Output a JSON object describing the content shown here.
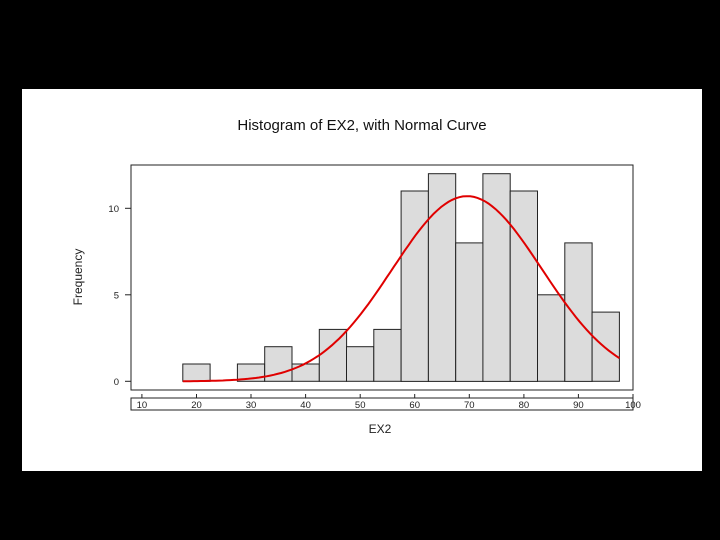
{
  "chart_data": {
    "type": "bar",
    "title": "Histogram of EX2, with Normal Curve",
    "xlabel": "EX2",
    "ylabel": "Frequency",
    "xlim": [
      8,
      100
    ],
    "ylim": [
      -0.5,
      12.5
    ],
    "xticks": [
      10,
      20,
      30,
      40,
      50,
      60,
      70,
      80,
      90,
      100
    ],
    "yticks": [
      0,
      5,
      10
    ],
    "bin_width": 5,
    "bins": [
      {
        "center": 20,
        "count": 1
      },
      {
        "center": 25,
        "count": 0
      },
      {
        "center": 30,
        "count": 1
      },
      {
        "center": 35,
        "count": 2
      },
      {
        "center": 40,
        "count": 1
      },
      {
        "center": 45,
        "count": 3
      },
      {
        "center": 50,
        "count": 2
      },
      {
        "center": 55,
        "count": 3
      },
      {
        "center": 60,
        "count": 11
      },
      {
        "center": 65,
        "count": 12
      },
      {
        "center": 70,
        "count": 8
      },
      {
        "center": 75,
        "count": 12
      },
      {
        "center": 80,
        "count": 11
      },
      {
        "center": 85,
        "count": 5
      },
      {
        "center": 90,
        "count": 8
      },
      {
        "center": 95,
        "count": 4
      }
    ],
    "normal_curve": {
      "mean": 69.6,
      "sd": 13.7,
      "peak": 10.7,
      "x_range": [
        17.5,
        97.5
      ]
    },
    "colors": {
      "bar_fill": "#dcdcdc",
      "bar_edge": "#222222",
      "curve": "#e00000"
    },
    "grid": false
  }
}
